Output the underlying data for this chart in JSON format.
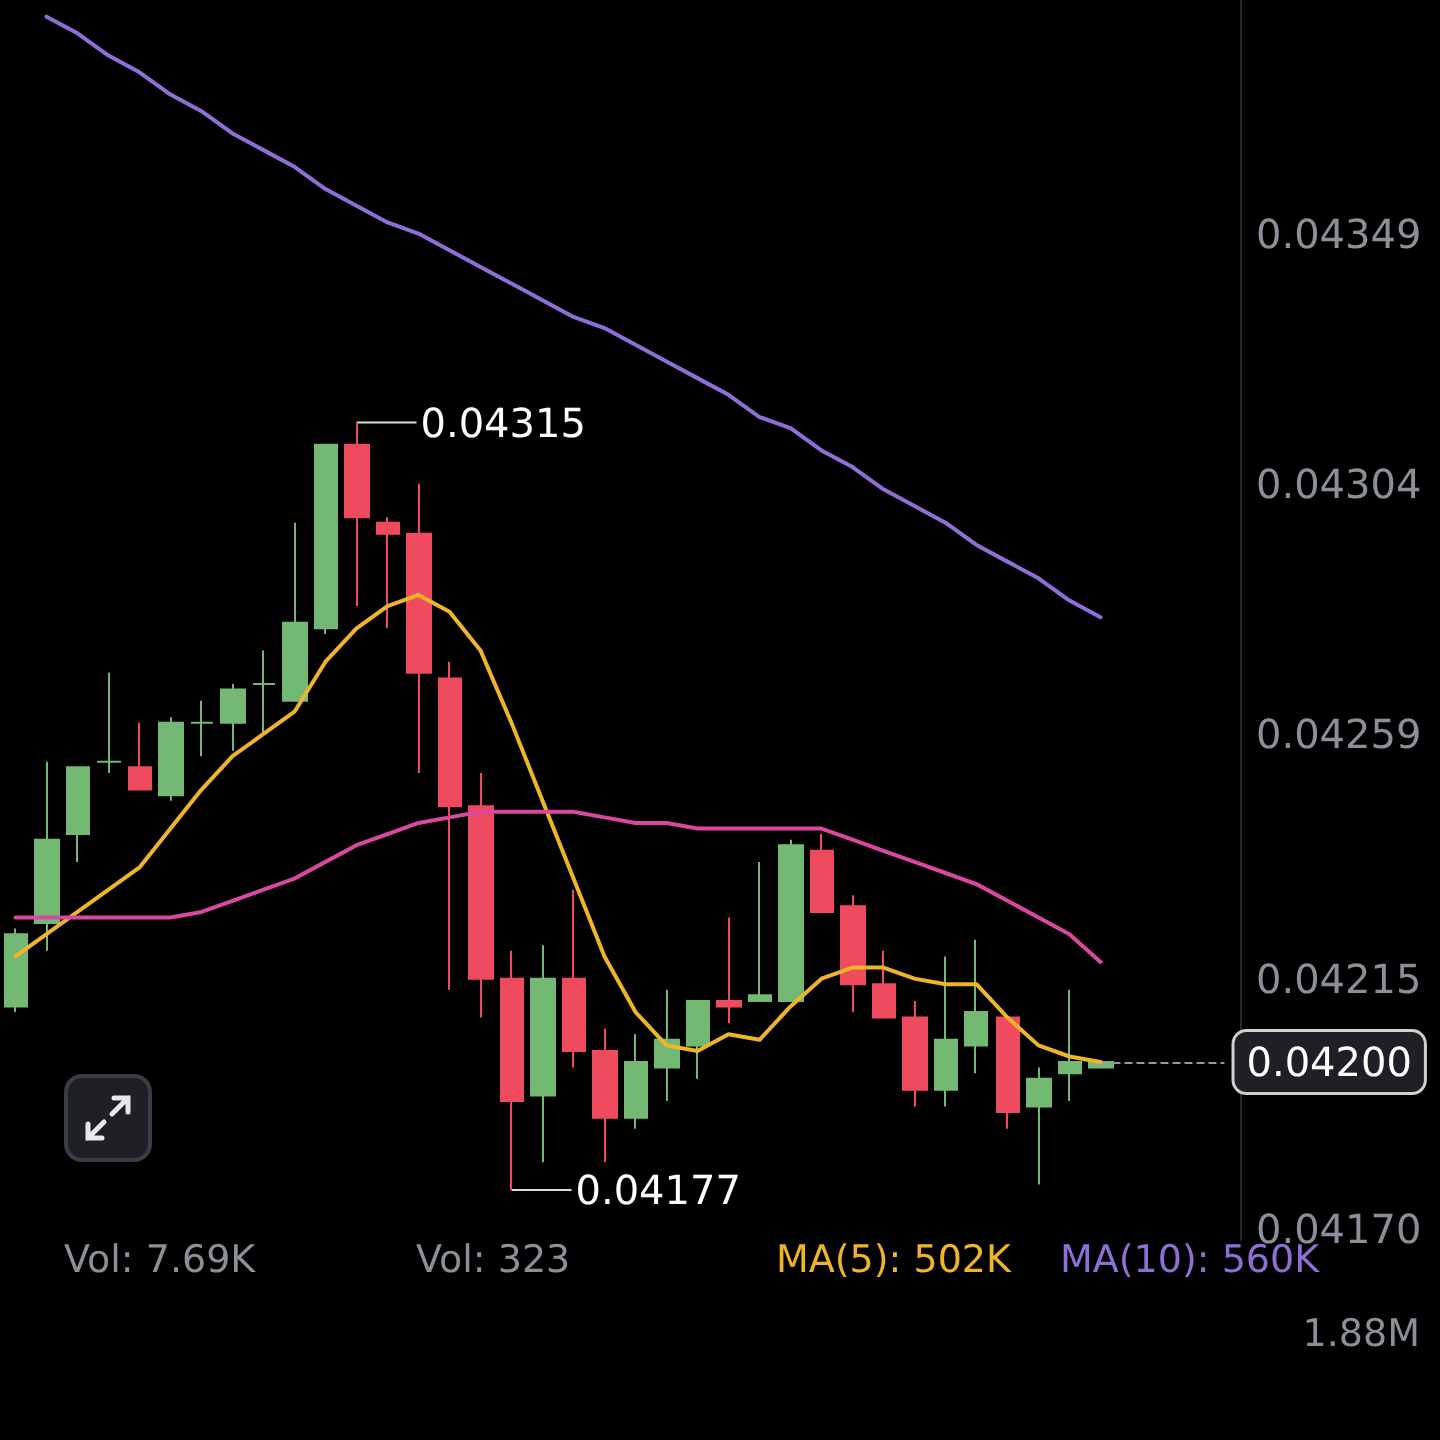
{
  "chart_data": {
    "type": "candlestick",
    "categories": [
      null,
      null,
      null,
      null,
      null,
      null,
      null,
      null,
      null,
      null,
      null,
      null,
      null,
      null,
      null,
      null,
      null,
      null,
      null,
      null,
      null,
      null,
      null,
      null,
      null,
      null,
      null,
      null,
      null,
      null,
      null,
      null,
      null,
      null,
      null,
      null
    ],
    "ohlc": [
      [
        0.0421,
        0.04224,
        0.04209,
        0.04223
      ],
      [
        0.04225,
        0.04254,
        0.0422,
        0.0424
      ],
      [
        0.04241,
        0.04253,
        0.04236,
        0.04253
      ],
      [
        0.04254,
        0.0427,
        0.04252,
        0.04254
      ],
      [
        0.04253,
        0.04261,
        0.04249,
        0.04249
      ],
      [
        0.04248,
        0.04262,
        0.04247,
        0.04261
      ],
      [
        0.04261,
        0.04265,
        0.04255,
        0.04261
      ],
      [
        0.04261,
        0.04268,
        0.04256,
        0.04267
      ],
      [
        0.04268,
        0.04274,
        0.04259,
        0.04268
      ],
      [
        0.04265,
        0.04297,
        0.04265,
        0.04279
      ],
      [
        0.04278,
        0.04311,
        0.04277,
        0.04311
      ],
      [
        0.04311,
        0.04315,
        0.04282,
        0.04298
      ],
      [
        0.04297,
        0.04298,
        0.04278,
        0.04295
      ],
      [
        0.04295,
        0.04304,
        0.04252,
        0.0427
      ],
      [
        0.04269,
        0.04272,
        0.04213,
        0.04246
      ],
      [
        0.04246,
        0.04252,
        0.04208,
        0.04215
      ],
      [
        0.04215,
        0.0422,
        0.04177,
        0.04193
      ],
      [
        0.04194,
        0.04221,
        0.04182,
        0.04215
      ],
      [
        0.04215,
        0.04231,
        0.04199,
        0.04202
      ],
      [
        0.04202,
        0.04206,
        0.04182,
        0.0419
      ],
      [
        0.0419,
        0.04205,
        0.04188,
        0.042
      ],
      [
        0.04199,
        0.04213,
        0.04193,
        0.04204
      ],
      [
        0.04203,
        0.04211,
        0.04197,
        0.04211
      ],
      [
        0.04211,
        0.04226,
        0.04207,
        0.0421
      ],
      [
        0.04211,
        0.04236,
        0.04211,
        0.04212
      ],
      [
        0.04211,
        0.0424,
        0.04211,
        0.04239
      ],
      [
        0.04238,
        0.04241,
        0.04227,
        0.04227
      ],
      [
        0.04228,
        0.0423,
        0.04209,
        0.04214
      ],
      [
        0.04214,
        0.0422,
        0.04208,
        0.04208
      ],
      [
        0.04208,
        0.04211,
        0.04192,
        0.04195
      ],
      [
        0.04195,
        0.04219,
        0.04192,
        0.04204
      ],
      [
        0.04203,
        0.04222,
        0.04198,
        0.04209
      ],
      [
        0.04208,
        0.04208,
        0.04188,
        0.04191
      ],
      [
        0.04192,
        0.04199,
        0.04178,
        0.04197
      ],
      [
        0.04198,
        0.04213,
        0.04193,
        0.042
      ],
      [
        0.04199,
        0.042,
        0.04199,
        0.042
      ]
    ],
    "colors": [
      "#74b973",
      "#74b973",
      "#74b973",
      "#74b973",
      "#f04a5f",
      "#74b973",
      "#74b973",
      "#74b973",
      "#74b973",
      "#74b973",
      "#74b973",
      "#f04a5f",
      "#f04a5f",
      "#f04a5f",
      "#f04a5f",
      "#f04a5f",
      "#f04a5f",
      "#74b973",
      "#f04a5f",
      "#f04a5f",
      "#74b973",
      "#74b973",
      "#74b973",
      "#f04a5f",
      "#74b973",
      "#74b973",
      "#f04a5f",
      "#f04a5f",
      "#f04a5f",
      "#f04a5f",
      "#74b973",
      "#74b973",
      "#f04a5f",
      "#74b973",
      "#74b973",
      "#74b973"
    ],
    "series": [
      {
        "type": "line",
        "color": "#f0b429",
        "values": [
          0.04219,
          0.04223,
          0.04227,
          0.04231,
          0.04235,
          0.04242,
          0.04249,
          0.04255,
          0.04259,
          0.04263,
          0.04272,
          0.04278,
          0.04282,
          0.04284,
          0.04281,
          0.04274,
          0.04261,
          0.04247,
          0.04233,
          0.04219,
          0.04209,
          0.04203,
          0.04202,
          0.04205,
          0.04204,
          0.0421,
          0.04215,
          0.04217,
          0.04217,
          0.04215,
          0.04214,
          0.04214,
          0.04208,
          0.04203,
          0.04201,
          0.042
        ]
      },
      {
        "type": "line",
        "color": "#d9489e",
        "values": [
          0.04226,
          0.04226,
          0.04226,
          0.04226,
          0.04226,
          0.04226,
          0.04227,
          0.04229,
          0.04231,
          0.04233,
          0.04236,
          0.04239,
          0.04241,
          0.04243,
          0.04244,
          0.04245,
          0.04245,
          0.04245,
          0.04245,
          0.04244,
          0.04243,
          0.04243,
          0.04242,
          0.04242,
          0.04242,
          0.04242,
          0.04242,
          0.0424,
          0.04238,
          0.04236,
          0.04234,
          0.04232,
          0.04229,
          0.04226,
          0.04223,
          0.04218
        ]
      },
      {
        "type": "line",
        "color": "#8f6fd6",
        "values": [
          null,
          0.04388,
          0.04385,
          0.04381,
          0.04378,
          0.04374,
          0.04371,
          0.04367,
          0.04364,
          0.04361,
          0.04357,
          0.04354,
          0.04351,
          0.04349,
          0.04346,
          0.04343,
          0.0434,
          0.04337,
          0.04334,
          0.04332,
          0.04329,
          0.04326,
          0.04323,
          0.0432,
          0.04316,
          0.04314,
          0.0431,
          0.04307,
          0.04303,
          0.043,
          0.04297,
          0.04293,
          0.0429,
          0.04287,
          0.04283,
          0.0428
        ]
      }
    ],
    "ylim": [
      0.04168,
      0.04391
    ],
    "yticks": [
      {
        "value": 0.0417,
        "label": "0.04170"
      },
      0.04215,
      0.04259,
      0.04304,
      0.04349
    ],
    "tick_labels": "y",
    "grid": false,
    "marker": "none",
    "line_style": "solid",
    "ref_lines": [
      {
        "axis": "y",
        "value": 0.042,
        "label": "0.04200",
        "line_style": "dashed",
        "color": "#9a9a9a"
      }
    ],
    "annotations": [
      "0.04315",
      "0.04177",
      "Vol: 7.69K",
      "Vol: 323",
      "MA(5): 502K",
      "MA(10): 560K",
      "1.88M"
    ]
  }
}
